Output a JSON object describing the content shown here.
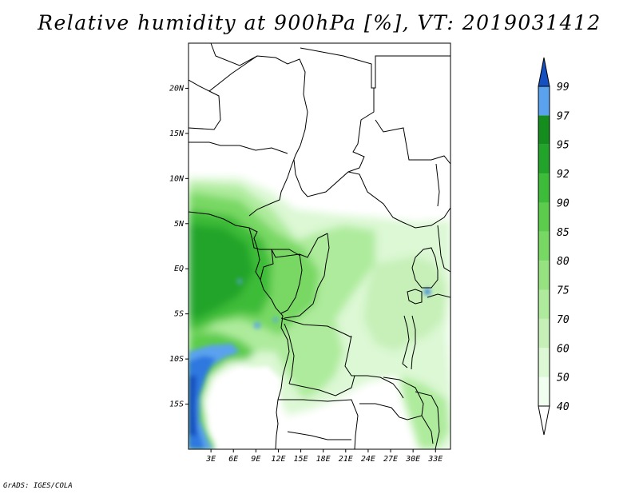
{
  "title": "Relative humidity at 900hPa [%], VT: 2019031412",
  "credit": "GrADS: IGES/COLA",
  "map": {
    "lat_range": [
      -20,
      25
    ],
    "lon_range": [
      0,
      35
    ],
    "lat_ticks": [
      {
        "value": 20,
        "label": "20N"
      },
      {
        "value": 15,
        "label": "15N"
      },
      {
        "value": 10,
        "label": "10N"
      },
      {
        "value": 5,
        "label": "5N"
      },
      {
        "value": 0,
        "label": "EQ"
      },
      {
        "value": -5,
        "label": "5S"
      },
      {
        "value": -10,
        "label": "10S"
      },
      {
        "value": -15,
        "label": "15S"
      }
    ],
    "lon_ticks": [
      {
        "value": 3,
        "label": "3E"
      },
      {
        "value": 6,
        "label": "6E"
      },
      {
        "value": 9,
        "label": "9E"
      },
      {
        "value": 12,
        "label": "12E"
      },
      {
        "value": 15,
        "label": "15E"
      },
      {
        "value": 18,
        "label": "18E"
      },
      {
        "value": 21,
        "label": "21E"
      },
      {
        "value": 24,
        "label": "24E"
      },
      {
        "value": 27,
        "label": "27E"
      },
      {
        "value": 30,
        "label": "30E"
      },
      {
        "value": 33,
        "label": "33E"
      }
    ]
  },
  "colorbar": {
    "levels": [
      "40",
      "50",
      "60",
      "70",
      "75",
      "80",
      "85",
      "90",
      "92",
      "95",
      "97",
      "99"
    ],
    "colors": [
      "#f0fff0",
      "#dcf8d4",
      "#c6f0b8",
      "#aeeb9c",
      "#96e280",
      "#78d864",
      "#5ccc4c",
      "#3cbc38",
      "#22a42a",
      "#148c1e",
      "#5aa2ee",
      "#2e78e0",
      "#1450c0"
    ],
    "below_color": "#ffffff",
    "above_color": "#1450c0"
  }
}
